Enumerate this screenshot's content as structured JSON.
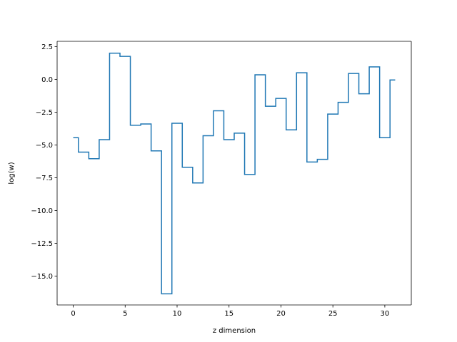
{
  "chart_data": {
    "type": "line",
    "drawstyle": "steps-mid",
    "xlabel": "z dimension",
    "ylabel": "log(w)",
    "xlim": [
      -1.55,
      32.55
    ],
    "ylim": [
      -17.2,
      2.9
    ],
    "xticks": [
      0,
      5,
      10,
      15,
      20,
      25,
      30
    ],
    "yticks": [
      2.5,
      0.0,
      -2.5,
      -5.0,
      -7.5,
      -10.0,
      -12.5,
      -15.0
    ],
    "xtick_labels": [
      "0",
      "5",
      "10",
      "15",
      "20",
      "25",
      "30"
    ],
    "ytick_labels": [
      "2.5",
      "0.0",
      "−2.5",
      "−5.0",
      "−7.5",
      "−10.0",
      "−12.5",
      "−15.0"
    ],
    "grid": false,
    "series": [
      {
        "color": "#1f77b4",
        "x": [
          0,
          1,
          2,
          3,
          4,
          5,
          6,
          7,
          8,
          9,
          10,
          11,
          12,
          13,
          14,
          15,
          16,
          17,
          18,
          19,
          20,
          21,
          22,
          23,
          24,
          25,
          26,
          27,
          28,
          29,
          30,
          31
        ],
        "y": [
          -4.45,
          -5.55,
          -6.05,
          -4.6,
          2.0,
          1.75,
          -3.5,
          -3.4,
          -5.45,
          -16.35,
          -3.35,
          -6.7,
          -7.9,
          -4.3,
          -2.4,
          -4.6,
          -4.1,
          -7.25,
          0.35,
          -2.05,
          -1.45,
          -3.85,
          0.5,
          -6.3,
          -6.1,
          -2.65,
          -1.75,
          0.45,
          -1.1,
          0.95,
          -4.45,
          -0.05
        ]
      }
    ]
  }
}
